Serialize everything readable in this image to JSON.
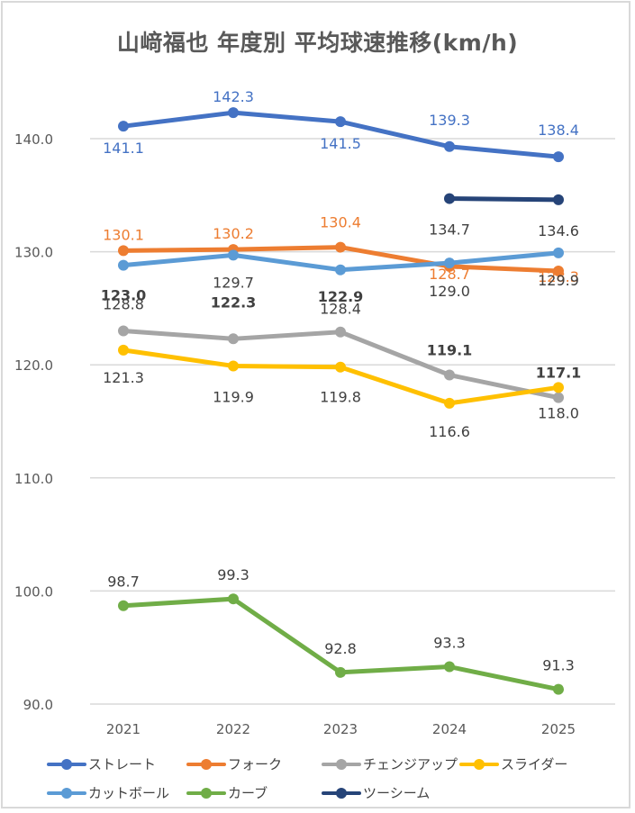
{
  "chart_data": {
    "type": "line",
    "title": "山﨑福也 年度別 平均球速推移(km/h)",
    "xlabel": "",
    "ylabel": "",
    "categories": [
      "2021",
      "2022",
      "2023",
      "2024",
      "2025"
    ],
    "ylim": [
      90,
      145
    ],
    "yticks": [
      "90.0",
      "100.0",
      "110.0",
      "120.0",
      "130.0",
      "140.0"
    ],
    "ytick_values": [
      90,
      100,
      110,
      120,
      130,
      140
    ],
    "grid": true,
    "legend_position": "bottom",
    "series": [
      {
        "name": "ストレート",
        "color": "#4472c4",
        "label_color": "#4472c4",
        "values": [
          141.1,
          142.3,
          141.5,
          139.3,
          138.4
        ],
        "labels": [
          "141.1",
          "142.3",
          "141.5",
          "139.3",
          "138.4"
        ]
      },
      {
        "name": "フォーク",
        "color": "#ed7d31",
        "label_color": "#ed7d31",
        "values": [
          130.1,
          130.2,
          130.4,
          128.7,
          128.3
        ],
        "labels": [
          "130.1",
          "130.2",
          "130.4",
          "128.7",
          "128.3"
        ]
      },
      {
        "name": "チェンジアップ",
        "color": "#a5a5a5",
        "label_color": "#404040",
        "values": [
          123.0,
          122.3,
          122.9,
          119.1,
          117.1
        ],
        "labels": [
          "123.0",
          "122.3",
          "122.9",
          "119.1",
          "117.1"
        ]
      },
      {
        "name": "スライダー",
        "color": "#ffc000",
        "label_color": "#404040",
        "values": [
          121.3,
          119.9,
          119.8,
          116.6,
          118.0
        ],
        "labels": [
          "121.3",
          "119.9",
          "119.8",
          "116.6",
          "118.0"
        ]
      },
      {
        "name": "カットボール",
        "color": "#5b9bd5",
        "label_color": "#404040",
        "values": [
          128.8,
          129.7,
          128.4,
          129.0,
          129.9
        ],
        "labels": [
          "128.8",
          "129.7",
          "128.4",
          "129.0",
          "129.9"
        ]
      },
      {
        "name": "カーブ",
        "color": "#70ad47",
        "label_color": "#404040",
        "values": [
          98.7,
          99.3,
          92.8,
          93.3,
          91.3
        ],
        "labels": [
          "98.7",
          "99.3",
          "92.8",
          "93.3",
          "91.3"
        ]
      },
      {
        "name": "ツーシーム",
        "color": "#264478",
        "label_color": "#404040",
        "values": [
          null,
          null,
          null,
          134.7,
          134.6
        ],
        "labels": [
          null,
          null,
          null,
          "134.7",
          "134.6"
        ]
      }
    ]
  }
}
